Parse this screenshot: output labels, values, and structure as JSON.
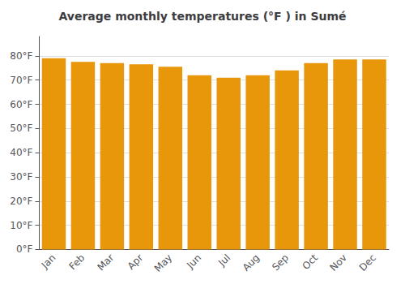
{
  "chart_data": {
    "type": "bar",
    "title": "Average monthly temperatures (°F ) in Sumé",
    "categories": [
      "Jan",
      "Feb",
      "Mar",
      "Apr",
      "May",
      "Jun",
      "Jul",
      "Aug",
      "Sep",
      "Oct",
      "Nov",
      "Dec"
    ],
    "values": [
      79.0,
      77.5,
      77.0,
      76.5,
      75.5,
      72.0,
      71.0,
      72.0,
      74.0,
      77.0,
      78.5,
      78.5
    ],
    "color": "#E8960A",
    "ylim": [
      0,
      88
    ],
    "yticks": [
      {
        "value": 0,
        "label": "0°F"
      },
      {
        "value": 10,
        "label": "10°F"
      },
      {
        "value": 20,
        "label": "20°F"
      },
      {
        "value": 30,
        "label": "30°F"
      },
      {
        "value": 40,
        "label": "40°F"
      },
      {
        "value": 50,
        "label": "50°F"
      },
      {
        "value": 60,
        "label": "60°F"
      },
      {
        "value": 70,
        "label": "70°F"
      },
      {
        "value": 80,
        "label": "80°F"
      }
    ],
    "grid": true
  }
}
